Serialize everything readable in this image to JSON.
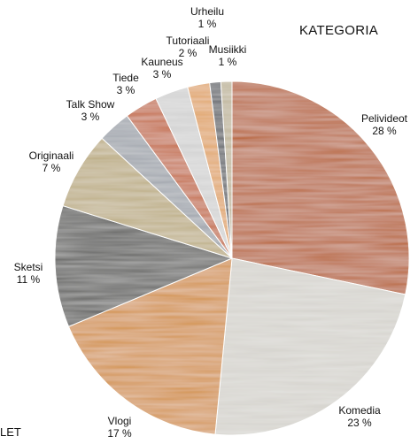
{
  "chart_data": {
    "type": "pie",
    "title": "KATEGORIA",
    "unit": "%",
    "slices": [
      {
        "label": "Pelivideot",
        "value": 28,
        "value_label": "28 %",
        "color": "#b8612e"
      },
      {
        "label": "Komedia",
        "value": 23,
        "value_label": "23 %",
        "color": "#d4d2cc"
      },
      {
        "label": "Vlogi",
        "value": 17,
        "value_label": "17 %",
        "color": "#d3924a"
      },
      {
        "label": "Sketsi",
        "value": 11,
        "value_label": "11 %",
        "color": "#5a5a58"
      },
      {
        "label": "Originaali",
        "value": 7,
        "value_label": "7 %",
        "color": "#bcac82"
      },
      {
        "label": "Talk Show",
        "value": 3,
        "value_label": "3 %",
        "color": "#9ea3ab"
      },
      {
        "label": "Tiede",
        "value": 3,
        "value_label": "3 %",
        "color": "#c46a42"
      },
      {
        "label": "Kauneus",
        "value": 3,
        "value_label": "3 %",
        "color": "#d2d2d2"
      },
      {
        "label": "Tutoriaali",
        "value": 2,
        "value_label": "2 %",
        "color": "#e0a466"
      },
      {
        "label": "Urheilu",
        "value": 1,
        "value_label": "1 %",
        "color": "#5d6066"
      },
      {
        "label": "Musiikki",
        "value": 1,
        "value_label": "1 %",
        "color": "#bfb59a"
      }
    ]
  },
  "corner_text": "LET"
}
